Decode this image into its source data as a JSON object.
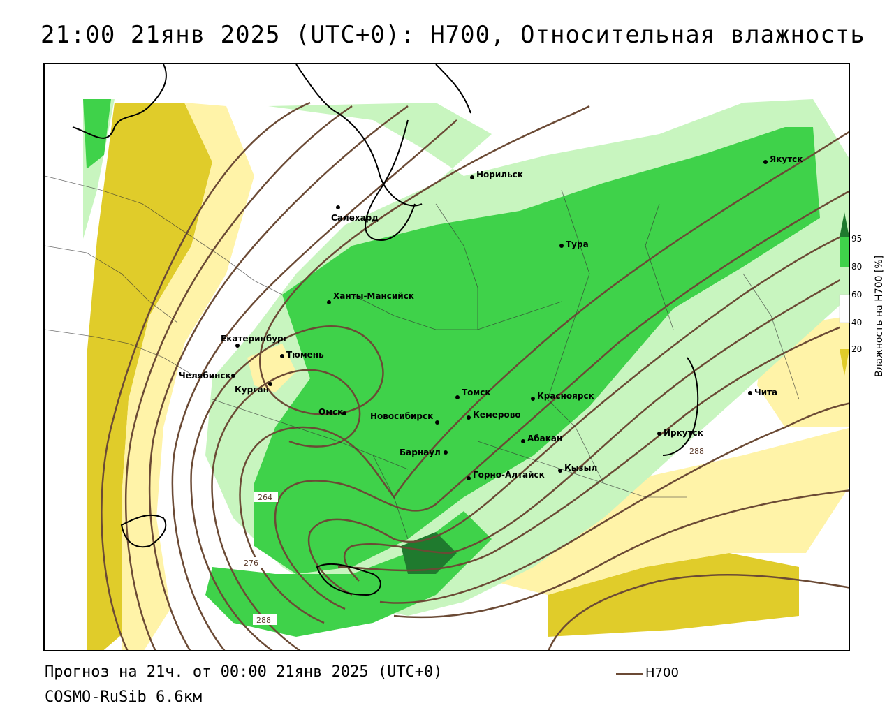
{
  "header": {
    "title": "21:00 21янв 2025 (UTC+0): H700, Относительная влажность"
  },
  "footer": {
    "forecast": "Прогноз на 21ч. от 00:00 21янв 2025 (UTC+0)",
    "model": "COSMO-RuSib 6.6км",
    "legend_label": "H700"
  },
  "colorbar": {
    "title": "Влажность на H700 [%]",
    "ticks": [
      "95",
      "80",
      "60",
      "40",
      "20"
    ],
    "colors": [
      "#1f7a2e",
      "#3fd24a",
      "#c8f5bf",
      "#ffffff",
      "#fff3a8",
      "#e0cc2a"
    ]
  },
  "map": {
    "contour_color": "#6b4a35",
    "contour_labels": [
      "264",
      "276",
      "288",
      "288"
    ],
    "cities": [
      {
        "name": "Норильск"
      },
      {
        "name": "Якутск"
      },
      {
        "name": "Салехард"
      },
      {
        "name": "Тура"
      },
      {
        "name": "Ханты-Мансийск"
      },
      {
        "name": "Екатеринбург"
      },
      {
        "name": "Тюмень"
      },
      {
        "name": "Челябинск"
      },
      {
        "name": "Курган"
      },
      {
        "name": "Омск"
      },
      {
        "name": "Новосибирск"
      },
      {
        "name": "Томск"
      },
      {
        "name": "Кемерово"
      },
      {
        "name": "Красноярск"
      },
      {
        "name": "Абакан"
      },
      {
        "name": "Барнаул"
      },
      {
        "name": "Горно-Алтайск"
      },
      {
        "name": "Кызыл"
      },
      {
        "name": "Иркутск"
      },
      {
        "name": "Чита"
      }
    ]
  }
}
